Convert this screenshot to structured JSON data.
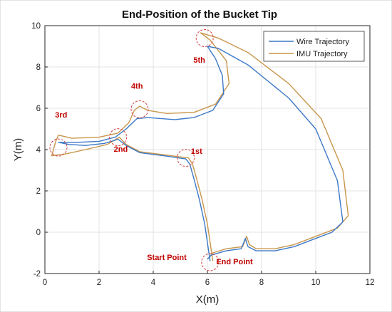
{
  "chart_data": {
    "type": "line",
    "title": "End-Position of the Bucket Tip",
    "xlabel": "X(m)",
    "ylabel": "Y(m)",
    "xlim": [
      0,
      12
    ],
    "ylim": [
      -2,
      10
    ],
    "xticks": [
      0,
      2,
      4,
      6,
      8,
      10,
      12
    ],
    "yticks": [
      -2,
      0,
      2,
      4,
      6,
      8,
      10
    ],
    "grid": true,
    "legend_position": "top-right",
    "series": [
      {
        "name": "Wire Trajectory",
        "color": "#3c78c8",
        "points": [
          [
            6.1,
            -1.4
          ],
          [
            6.0,
            -0.5
          ],
          [
            5.9,
            0.4
          ],
          [
            5.7,
            1.6
          ],
          [
            5.5,
            2.6
          ],
          [
            5.35,
            3.3
          ],
          [
            5.2,
            3.55
          ],
          [
            4.4,
            3.7
          ],
          [
            3.5,
            3.85
          ],
          [
            3.0,
            4.2
          ],
          [
            2.7,
            4.5
          ],
          [
            2.2,
            4.3
          ],
          [
            1.5,
            4.2
          ],
          [
            0.9,
            4.25
          ],
          [
            0.5,
            4.35
          ],
          [
            1.2,
            4.35
          ],
          [
            2.0,
            4.4
          ],
          [
            2.6,
            4.6
          ],
          [
            3.0,
            5.0
          ],
          [
            3.4,
            5.5
          ],
          [
            3.8,
            5.55
          ],
          [
            4.8,
            5.45
          ],
          [
            5.5,
            5.55
          ],
          [
            6.2,
            5.9
          ],
          [
            6.6,
            6.7
          ],
          [
            6.55,
            7.6
          ],
          [
            6.3,
            8.4
          ],
          [
            6.0,
            9.0
          ],
          [
            6.4,
            8.9
          ],
          [
            7.5,
            8.1
          ],
          [
            9.0,
            6.5
          ],
          [
            10.0,
            5.0
          ],
          [
            10.8,
            2.5
          ],
          [
            11.0,
            0.5
          ],
          [
            10.6,
            0.0
          ],
          [
            10.0,
            -0.3
          ],
          [
            9.2,
            -0.7
          ],
          [
            8.5,
            -0.9
          ],
          [
            7.8,
            -0.9
          ],
          [
            7.5,
            -0.7
          ],
          [
            7.4,
            -0.3
          ],
          [
            7.25,
            -0.8
          ],
          [
            6.7,
            -0.9
          ],
          [
            6.15,
            -1.1
          ],
          [
            6.0,
            -1.3
          ]
        ]
      },
      {
        "name": "IMU Trajectory",
        "color": "#c8964a",
        "points": [
          [
            6.2,
            -1.4
          ],
          [
            6.1,
            -0.5
          ],
          [
            6.0,
            0.4
          ],
          [
            5.8,
            1.6
          ],
          [
            5.6,
            2.6
          ],
          [
            5.45,
            3.3
          ],
          [
            5.3,
            3.6
          ],
          [
            4.4,
            3.75
          ],
          [
            3.5,
            3.9
          ],
          [
            3.0,
            4.25
          ],
          [
            2.75,
            4.6
          ],
          [
            2.3,
            4.25
          ],
          [
            1.5,
            4.0
          ],
          [
            0.8,
            3.8
          ],
          [
            0.25,
            3.7
          ],
          [
            0.4,
            4.4
          ],
          [
            0.5,
            4.7
          ],
          [
            1.0,
            4.55
          ],
          [
            2.0,
            4.6
          ],
          [
            2.7,
            4.8
          ],
          [
            3.1,
            5.3
          ],
          [
            3.3,
            5.9
          ],
          [
            3.5,
            6.1
          ],
          [
            3.8,
            5.9
          ],
          [
            4.5,
            5.75
          ],
          [
            5.5,
            5.8
          ],
          [
            6.3,
            6.2
          ],
          [
            6.8,
            7.2
          ],
          [
            6.7,
            8.3
          ],
          [
            6.1,
            9.3
          ],
          [
            5.75,
            9.65
          ],
          [
            6.4,
            9.4
          ],
          [
            7.5,
            8.7
          ],
          [
            9.0,
            7.2
          ],
          [
            10.2,
            5.5
          ],
          [
            11.0,
            3.0
          ],
          [
            11.2,
            0.8
          ],
          [
            10.8,
            0.2
          ],
          [
            10.0,
            -0.2
          ],
          [
            9.2,
            -0.6
          ],
          [
            8.5,
            -0.8
          ],
          [
            7.8,
            -0.8
          ],
          [
            7.55,
            -0.6
          ],
          [
            7.45,
            -0.2
          ],
          [
            7.3,
            -0.7
          ],
          [
            6.7,
            -0.8
          ],
          [
            6.2,
            -1.0
          ],
          [
            6.05,
            -1.25
          ]
        ]
      }
    ],
    "annotations": [
      {
        "text": "1st",
        "x": 5.2,
        "y": 3.6,
        "label_x": 5.6,
        "label_y": 3.8
      },
      {
        "text": "2nd",
        "x": 2.7,
        "y": 4.6,
        "label_x": 2.8,
        "label_y": 3.9
      },
      {
        "text": "3rd",
        "x": 0.5,
        "y": 4.1,
        "label_x": 0.6,
        "label_y": 5.55
      },
      {
        "text": "4th",
        "x": 3.5,
        "y": 5.95,
        "label_x": 3.4,
        "label_y": 6.95
      },
      {
        "text": "5th",
        "x": 5.9,
        "y": 9.4,
        "label_x": 5.7,
        "label_y": 8.2
      },
      {
        "text": "Start Point",
        "x": 6.1,
        "y": -1.45,
        "label_x": 4.5,
        "label_y": -1.35
      },
      {
        "text": "End Point",
        "x": 6.1,
        "y": -1.45,
        "label_x": 7.0,
        "label_y": -1.55
      }
    ]
  }
}
